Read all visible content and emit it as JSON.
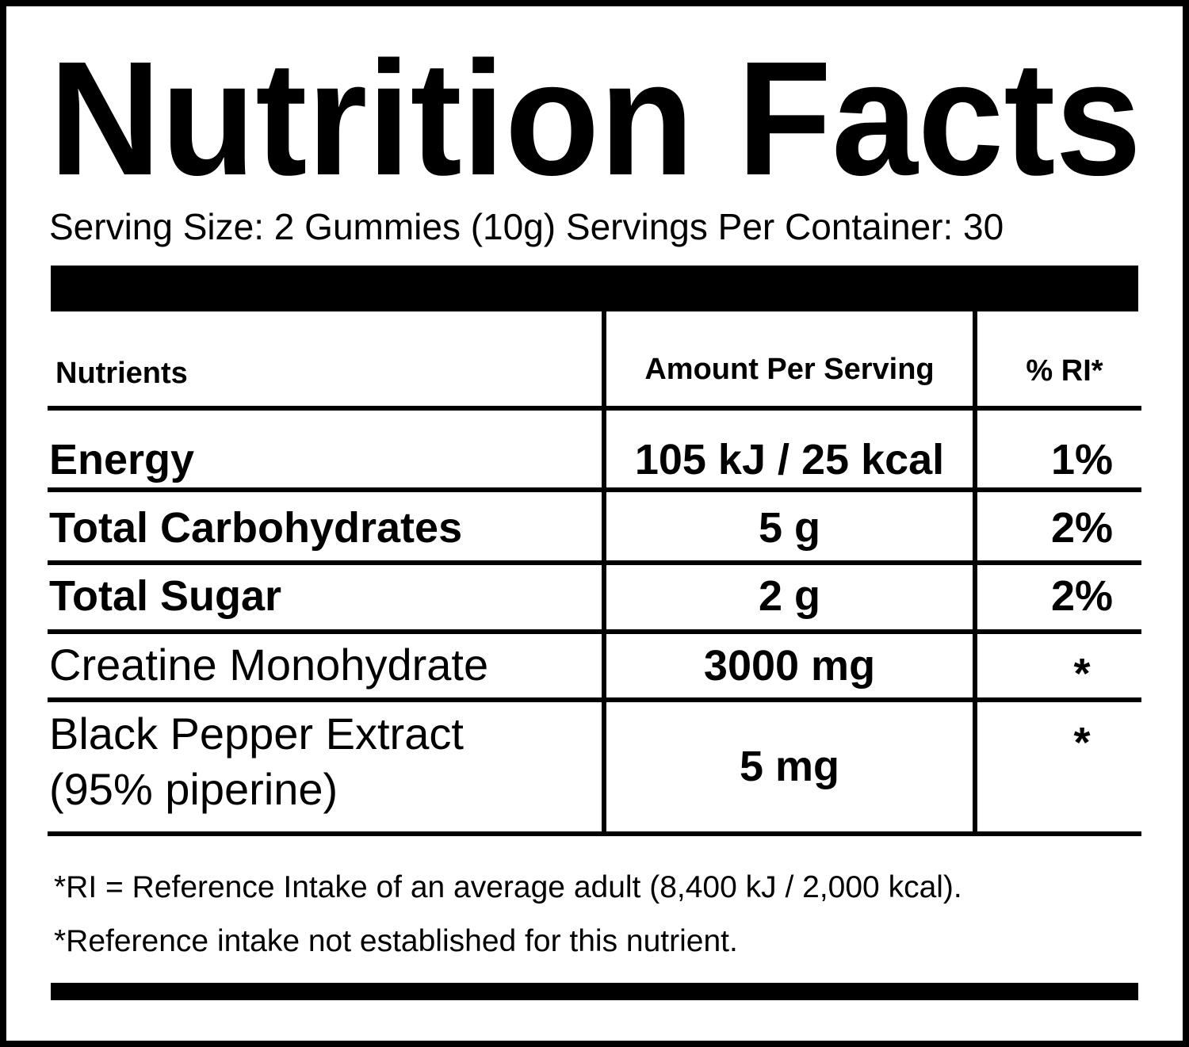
{
  "title": "Nutrition Facts",
  "serving": "Serving Size: 2 Gummies (10g) Servings Per Container: 30",
  "table": {
    "header": [
      "Nutrients",
      "Amount Per Serving",
      "% RI*"
    ],
    "rows": [
      [
        "Energy",
        "105 kJ / 25 kcal",
        "1%"
      ],
      [
        "Total Carbohydrates",
        "5 g",
        "2%"
      ],
      [
        "Total Sugar",
        "2 g",
        "2%"
      ],
      [
        "Creatine Monohydrate",
        "3000 mg",
        "*"
      ],
      [
        [
          "Black Pepper Extract",
          "(95% piperine)"
        ],
        "5 mg",
        "*"
      ]
    ]
  },
  "footnotes": [
    "*RI = Reference Intake of an average adult (8,400 kJ / 2,000 kcal).",
    "*Reference intake not established for this nutrient."
  ]
}
